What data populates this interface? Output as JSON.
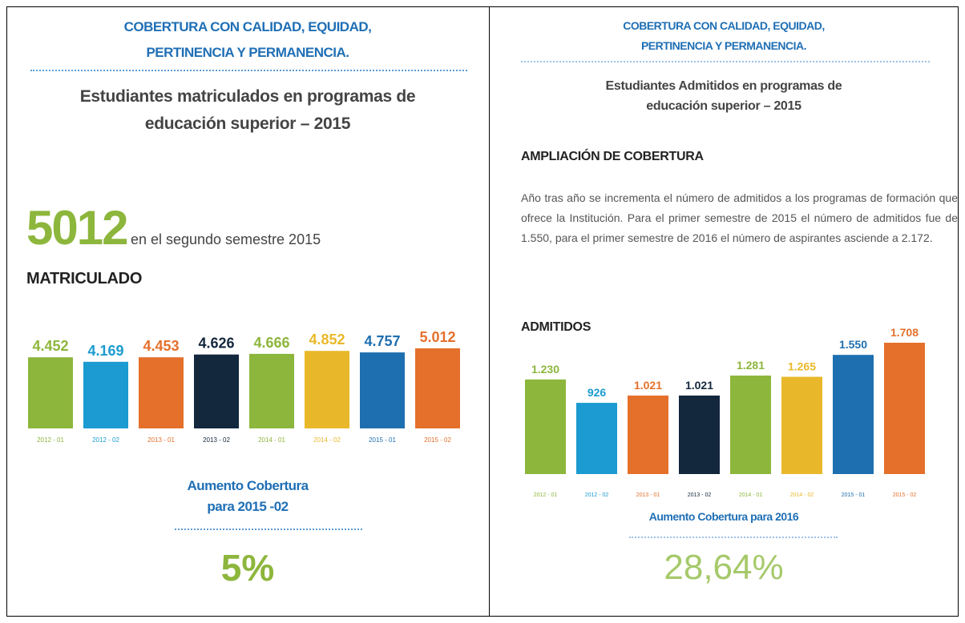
{
  "left": {
    "title_lines": [
      "COBERTURA CON CALIDAD, EQUIDAD,",
      "PERTINENCIA Y PERMANENCIA."
    ],
    "subtitle_lines": [
      "Estudiantes matriculados en programas de",
      "educación superior – 2015"
    ],
    "highlight_value": "5012",
    "highlight_text": "en el segundo semestre 2015",
    "section": "MATRICULADO",
    "footer_lines": [
      "Aumento Cobertura",
      "para 2015 -02"
    ],
    "footer_value": "5%"
  },
  "right": {
    "title_lines": [
      "COBERTURA CON CALIDAD, EQUIDAD,",
      "PERTINENCIA Y PERMANENCIA."
    ],
    "subtitle_lines": [
      "Estudiantes Admitidos en programas de",
      "educación superior – 2015"
    ],
    "section": "AMPLIACIÓN DE COBERTURA",
    "paragraph": "Año tras año se incrementa el número de admitidos a los programas de formación que ofrece la Institución. Para el primer semestre de 2015 el número de admitidos fue de 1.550, para el primer semestre de 2016 el número de aspirantes asciende a 2.172.",
    "chart_title": "ADMITIDOS",
    "footer_line": "Aumento Cobertura para 2016",
    "footer_value": "28,64%"
  },
  "chart_data": [
    {
      "type": "bar",
      "categories": [
        "2012 - 01",
        "2012 - 02",
        "2013 - 01",
        "2013 - 02",
        "2014 - 01",
        "2014 - 02",
        "2015 - 01",
        "2015 - 02"
      ],
      "values": [
        4452,
        4169,
        4453,
        4626,
        4666,
        4852,
        4757,
        5012
      ],
      "value_labels": [
        "4.452",
        "4.169",
        "4.453",
        "4.626",
        "4.666",
        "4.852",
        "4.757",
        "5.012"
      ],
      "colors": [
        "#8db63c",
        "#1b9bd1",
        "#e4702b",
        "#13273d",
        "#8db63c",
        "#e9b82a",
        "#1e6fb0",
        "#e4702b"
      ]
    },
    {
      "type": "bar",
      "categories": [
        "2012 - 01",
        "2012 - 02",
        "2013 - 01",
        "2013 - 02",
        "2014 - 01",
        "2014 - 02",
        "2015 - 01",
        "2015 - 02"
      ],
      "values": [
        1230,
        926,
        1021,
        1021,
        1281,
        1265,
        1550,
        1708
      ],
      "value_labels": [
        "1.230",
        "926",
        "1.021",
        "1.021",
        "1.281",
        "1.265",
        "1.550",
        "1.708"
      ],
      "colors": [
        "#8db63c",
        "#1b9bd1",
        "#e4702b",
        "#13273d",
        "#8db63c",
        "#e9b82a",
        "#1e6fb0",
        "#e4702b"
      ]
    }
  ]
}
